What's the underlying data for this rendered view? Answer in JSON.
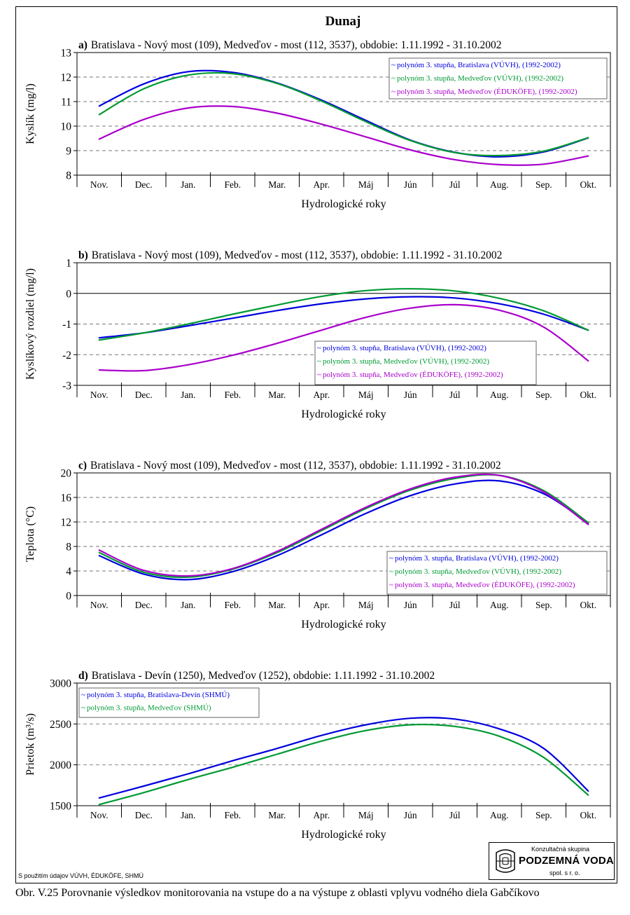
{
  "page_title": "Dunaj",
  "footnote": "S použitím údajov VÚVH, ÉDUKÖFE, SHMÚ",
  "caption": "Obr. V.25 Porovnanie výsledkov monitorovania na vstupe do a na výstupe z oblasti vplyvu vodného diela Gabčíkovo",
  "logo": {
    "top": "Konzultačná skupina",
    "name": "PODZEMNÁ VODA",
    "bottom": "spol. s r. o."
  },
  "colors": {
    "blue": "#0000dd",
    "green": "#009933",
    "purple": "#aa00cc"
  },
  "chart_data": [
    {
      "type": "line",
      "panel": "a)",
      "title": "Bratislava - Nový most (109), Medveďov - most (112, 3537), obdobie: 1.11.1992 - 31.10.2002",
      "xlabel": "Hydrologické roky",
      "ylabel": "Kyslík  (mg/l)",
      "categories": [
        "Nov.",
        "Dec.",
        "Jan.",
        "Feb.",
        "Mar.",
        "Apr.",
        "Máj",
        "Jún",
        "Júl",
        "Aug.",
        "Sep.",
        "Okt."
      ],
      "ylim": [
        8,
        13
      ],
      "yticks": [
        8,
        9,
        10,
        11,
        12,
        13
      ],
      "grid": "dashed horizontal",
      "legend": "top-right",
      "x": [
        0,
        1,
        2,
        3,
        4,
        5,
        6,
        7,
        8,
        9,
        10,
        11
      ],
      "series": [
        {
          "name": "polynóm 3. stupňa, Bratislava (VÚVH), (1992-2002)",
          "color": "#0000dd",
          "values": [
            10.82,
            11.72,
            12.22,
            12.19,
            11.76,
            11.06,
            10.23,
            9.43,
            8.93,
            8.75,
            8.95,
            9.52
          ]
        },
        {
          "name": "polynóm 3. stupňa, Medveďov (VÚVH), (1992-2002)",
          "color": "#009933",
          "values": [
            10.47,
            11.52,
            12.08,
            12.14,
            11.74,
            11.02,
            10.18,
            9.41,
            8.92,
            8.8,
            8.98,
            9.53
          ]
        },
        {
          "name": "polynóm 3. stupňa, Medveďov (ÉDUKÖFE), (1992-2002)",
          "color": "#aa00cc",
          "values": [
            9.47,
            10.27,
            10.74,
            10.8,
            10.53,
            10.08,
            9.56,
            9.03,
            8.63,
            8.43,
            8.45,
            8.78
          ]
        }
      ]
    },
    {
      "type": "line",
      "panel": "b)",
      "title": "Bratislava - Nový most (109), Medveďov - most (112, 3537), obdobie: 1.11.1992 - 31.10.2002",
      "xlabel": "Hydrologické roky",
      "ylabel": "Kyslíkový rozdiel  (mg/l)",
      "categories": [
        "Nov.",
        "Dec.",
        "Jan.",
        "Feb.",
        "Mar.",
        "Apr.",
        "Máj",
        "Jún",
        "Júl",
        "Aug.",
        "Sep.",
        "Okt."
      ],
      "ylim": [
        -3,
        1
      ],
      "yticks": [
        -3,
        -2,
        -1,
        0,
        1
      ],
      "grid": "dashed horizontal, solid zero line",
      "legend": "bottom-right",
      "x": [
        0,
        1,
        2,
        3,
        4,
        5,
        6,
        7,
        8,
        9,
        10,
        11
      ],
      "series": [
        {
          "name": "polynóm 3. stupňa, Bratislava (VÚVH), (1992-2002)",
          "color": "#0000dd",
          "values": [
            -1.45,
            -1.29,
            -1.06,
            -0.81,
            -0.56,
            -0.34,
            -0.18,
            -0.11,
            -0.15,
            -0.34,
            -0.68,
            -1.2
          ]
        },
        {
          "name": "polynóm 3. stupňa, Medveďov (VÚVH), (1992-2002)",
          "color": "#009933",
          "values": [
            -1.52,
            -1.29,
            -1.0,
            -0.68,
            -0.38,
            -0.1,
            0.09,
            0.15,
            0.08,
            -0.16,
            -0.57,
            -1.2
          ]
        },
        {
          "name": "polynóm 3. stupňa, Medveďov (ÉDUKÖFE), (1992-2002)",
          "color": "#aa00cc",
          "values": [
            -2.5,
            -2.52,
            -2.33,
            -2.02,
            -1.63,
            -1.2,
            -0.78,
            -0.48,
            -0.37,
            -0.55,
            -1.1,
            -2.2
          ]
        }
      ]
    },
    {
      "type": "line",
      "panel": "c)",
      "title": "Bratislava - Nový most (109), Medveďov - most (112, 3537), obdobie: 1.11.1992 - 31.10.2002",
      "xlabel": "Hydrologické roky",
      "ylabel": "Teplota  (°C)",
      "categories": [
        "Nov.",
        "Dec.",
        "Jan.",
        "Feb.",
        "Mar.",
        "Apr.",
        "Máj",
        "Jún",
        "Júl",
        "Aug.",
        "Sep.",
        "Okt."
      ],
      "ylim": [
        0,
        20
      ],
      "yticks": [
        0,
        4,
        8,
        12,
        16,
        20
      ],
      "grid": "dashed horizontal",
      "legend": "bottom-right",
      "x": [
        0,
        1,
        2,
        3,
        4,
        5,
        6,
        7,
        8,
        9,
        10,
        11
      ],
      "series": [
        {
          "name": "polynóm 3. stupňa, Bratislava (VÚVH), (1992-2002)",
          "color": "#0000dd",
          "values": [
            6.5,
            3.5,
            2.6,
            3.9,
            6.5,
            9.9,
            13.4,
            16.3,
            18.2,
            18.7,
            16.6,
            11.8
          ]
        },
        {
          "name": "polynóm 3. stupňa, Medveďov (VÚVH), (1992-2002)",
          "color": "#009933",
          "values": [
            7.0,
            3.8,
            3.0,
            4.3,
            7.0,
            10.6,
            14.2,
            17.2,
            19.1,
            19.6,
            17.1,
            11.9
          ]
        },
        {
          "name": "polynóm 3. stupňa, Medveďov (ÉDUKÖFE), (1992-2002)",
          "color": "#aa00cc",
          "values": [
            7.4,
            4.1,
            3.2,
            4.4,
            7.2,
            10.8,
            14.4,
            17.4,
            19.3,
            19.6,
            16.9,
            11.6
          ]
        }
      ]
    },
    {
      "type": "line",
      "panel": "d)",
      "title": "Bratislava - Devín (1250), Medveďov (1252), obdobie: 1.11.1992 - 31.10.2002",
      "xlabel": "Hydrologické roky",
      "ylabel": "Prietok  (m³/s)",
      "categories": [
        "Nov.",
        "Dec.",
        "Jan.",
        "Feb.",
        "Mar.",
        "Apr.",
        "Máj",
        "Jún",
        "Júl",
        "Aug.",
        "Sep.",
        "Okt."
      ],
      "ylim": [
        1500,
        3000
      ],
      "yticks": [
        1500,
        2000,
        2500,
        3000
      ],
      "grid": "dashed horizontal",
      "legend": "top-left",
      "x": [
        0,
        1,
        2,
        3,
        4,
        5,
        6,
        7,
        8,
        9,
        10,
        11
      ],
      "series": [
        {
          "name": "polynóm 3. stupňa, Bratislava-Devín (SHMÚ)",
          "color": "#0000dd",
          "values": [
            1595,
            1740,
            1890,
            2050,
            2200,
            2360,
            2490,
            2570,
            2560,
            2440,
            2200,
            1680
          ]
        },
        {
          "name": "polynóm 3. stupňa, Medveďov (SHMÚ)",
          "color": "#009933",
          "values": [
            1515,
            1660,
            1820,
            1970,
            2130,
            2290,
            2420,
            2490,
            2470,
            2350,
            2090,
            1630
          ]
        }
      ]
    }
  ]
}
